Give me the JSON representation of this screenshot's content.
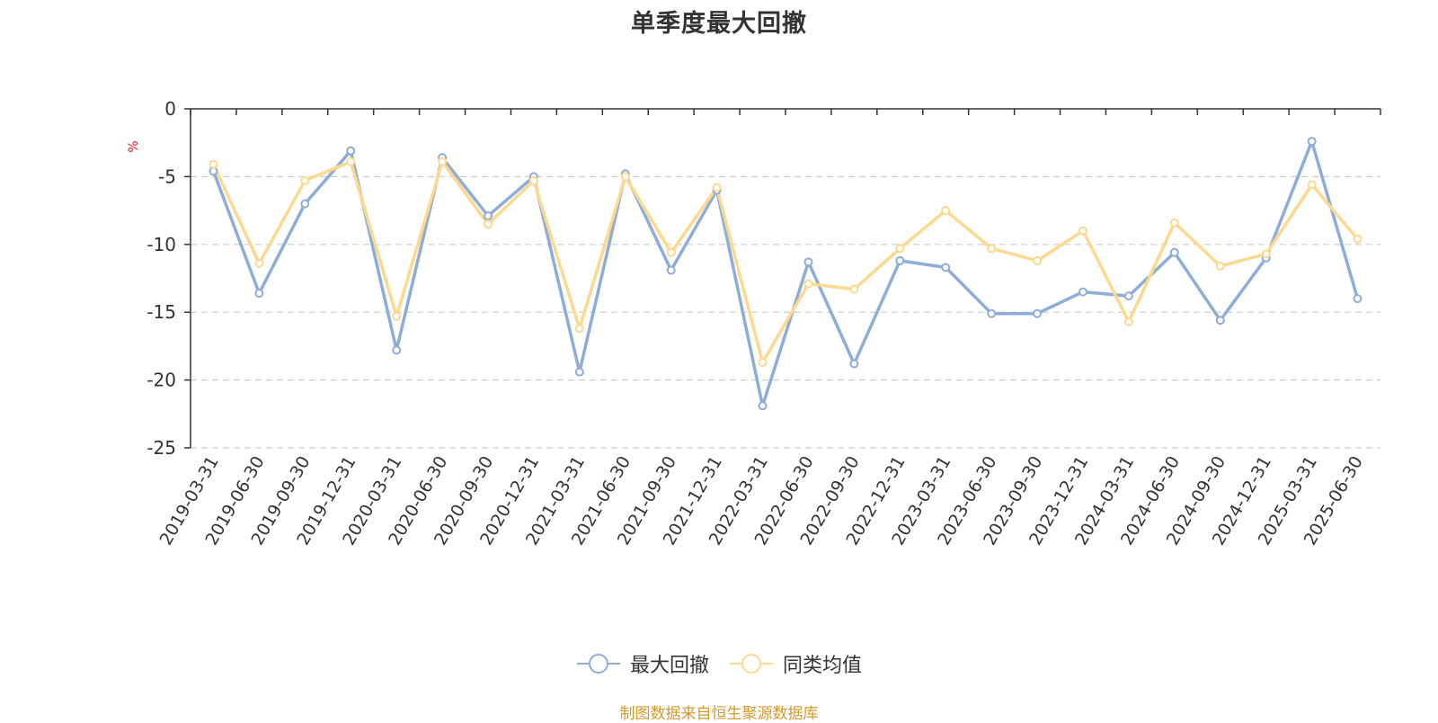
{
  "chart_data": {
    "type": "line",
    "title": "单季度最大回撤",
    "ylabel": "%",
    "xlabel": "",
    "ylim": [
      -25,
      0
    ],
    "yticks": [
      0,
      -5,
      -10,
      -15,
      -20,
      -25
    ],
    "grid": true,
    "legend_position": "bottom",
    "categories": [
      "2019-03-31",
      "2019-06-30",
      "2019-09-30",
      "2019-12-31",
      "2020-03-31",
      "2020-06-30",
      "2020-09-30",
      "2020-12-31",
      "2021-03-31",
      "2021-06-30",
      "2021-09-30",
      "2021-12-31",
      "2022-03-31",
      "2022-06-30",
      "2022-09-30",
      "2022-12-31",
      "2023-03-31",
      "2023-06-30",
      "2023-09-30",
      "2023-12-31",
      "2024-03-31",
      "2024-06-30",
      "2024-09-30",
      "2024-12-31",
      "2025-03-31",
      "2025-06-30"
    ],
    "series": [
      {
        "name": "最大回撤",
        "color": "#8eacd8",
        "values": [
          -4.6,
          -13.6,
          -7.0,
          -3.1,
          -17.8,
          -3.6,
          -7.9,
          -5.0,
          -19.4,
          -4.8,
          -11.9,
          -6.0,
          -21.9,
          -11.3,
          -18.8,
          -11.2,
          -11.7,
          -15.1,
          -15.1,
          -13.5,
          -13.8,
          -10.6,
          -15.6,
          -11.0,
          -2.4,
          -14.0
        ]
      },
      {
        "name": "同类均值",
        "color": "#fcd98f",
        "values": [
          -4.1,
          -11.4,
          -5.3,
          -3.9,
          -15.3,
          -3.9,
          -8.5,
          -5.3,
          -16.2,
          -5.0,
          -10.6,
          -5.8,
          -18.7,
          -12.9,
          -13.3,
          -10.3,
          -7.5,
          -10.3,
          -11.2,
          -9.0,
          -15.7,
          -8.4,
          -11.6,
          -10.7,
          -5.6,
          -9.6
        ]
      }
    ]
  },
  "legend": {
    "items": [
      {
        "label": "最大回撤",
        "color": "#8eacd8"
      },
      {
        "label": "同类均值",
        "color": "#fcd98f"
      }
    ]
  },
  "source_text": "制图数据来自恒生聚源数据库"
}
